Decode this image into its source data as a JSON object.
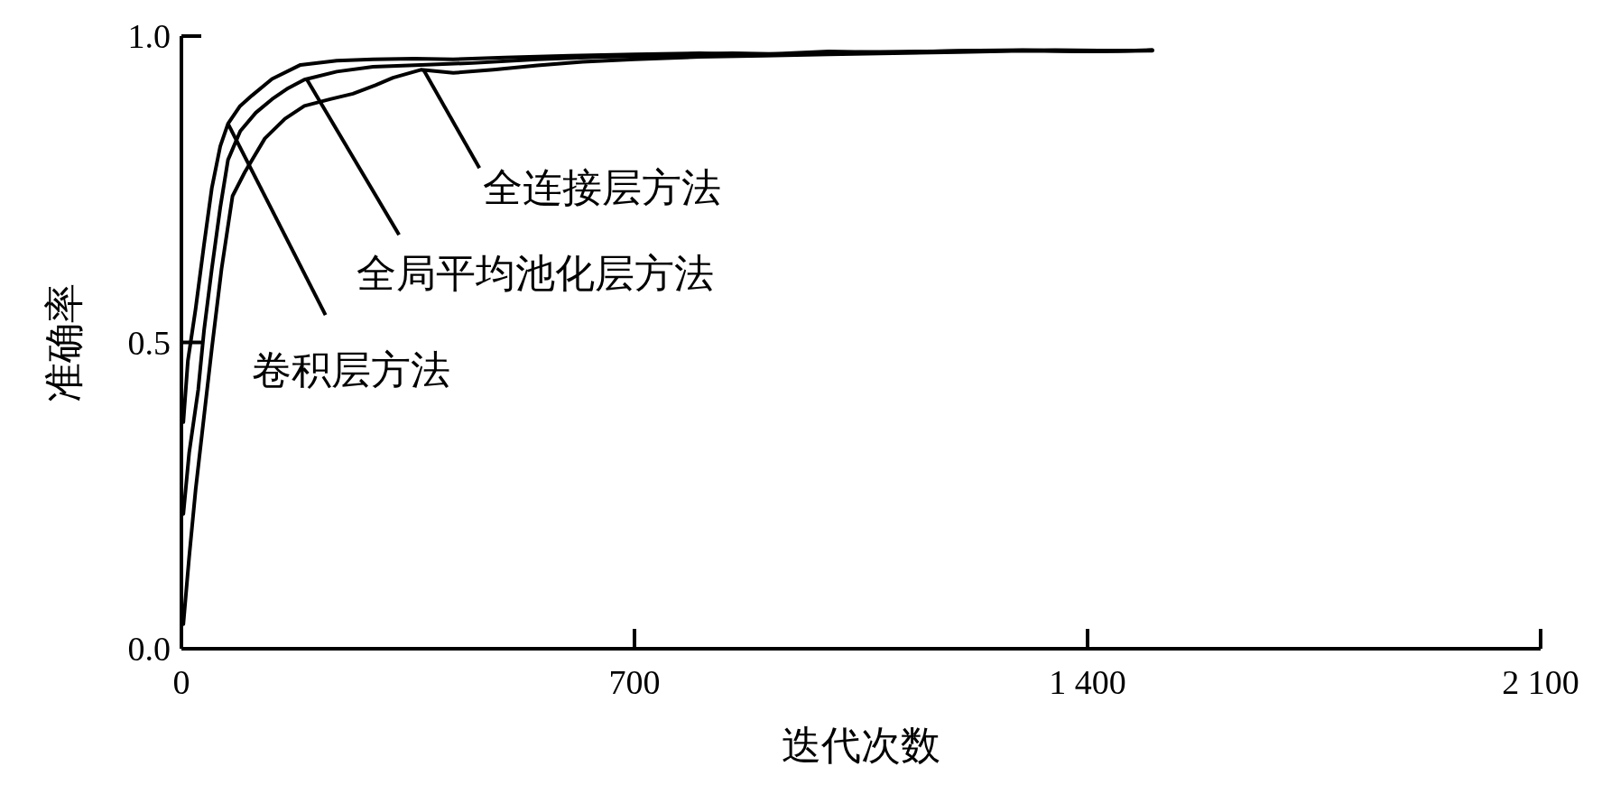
{
  "chart_data": {
    "type": "line",
    "xlabel": "迭代次数",
    "ylabel": "准确率",
    "xlim": [
      0,
      2100
    ],
    "ylim": [
      0,
      1
    ],
    "xticks": [
      0,
      700,
      {
        "value": 1400,
        "label": "1 400"
      },
      {
        "value": 2100,
        "label": "2 100"
      }
    ],
    "yticks": [
      {
        "value": 0,
        "label": "0.0"
      },
      0.5,
      {
        "value": 1,
        "label": "1.0"
      }
    ],
    "grid": false,
    "marker": "none",
    "line_style": "solid",
    "series": [
      {
        "color": "#000000",
        "x": [
          3,
          10,
          22,
          35,
          47,
          60,
          72,
          90,
          109,
          140,
          184,
          240,
          296,
          360,
          420,
          500,
          600,
          700,
          800,
          900,
          1000,
          1100,
          1200,
          1300,
          1400,
          1500
        ],
        "values": [
          0.37,
          0.47,
          0.555,
          0.66,
          0.752,
          0.82,
          0.857,
          0.885,
          0.903,
          0.93,
          0.953,
          0.96,
          0.962,
          0.963,
          0.962,
          0.965,
          0.968,
          0.97,
          0.972,
          0.97,
          0.975,
          0.973,
          0.976,
          0.977,
          0.975,
          0.976
        ]
      },
      {
        "color": "#000000",
        "x": [
          3,
          12,
          26,
          35,
          47,
          60,
          72,
          91,
          115,
          140,
          165,
          190,
          240,
          296,
          370,
          450,
          550,
          650,
          750,
          850,
          950,
          1050,
          1150,
          1250,
          1350,
          1450,
          1500
        ],
        "values": [
          0.22,
          0.32,
          0.423,
          0.52,
          0.62,
          0.72,
          0.798,
          0.845,
          0.875,
          0.897,
          0.915,
          0.929,
          0.942,
          0.95,
          0.953,
          0.956,
          0.962,
          0.966,
          0.968,
          0.972,
          0.97,
          0.974,
          0.975,
          0.976,
          0.977,
          0.976,
          0.977
        ]
      },
      {
        "color": "#000000",
        "x": [
          3,
          12,
          22,
          35,
          47,
          62,
          79,
          98,
          129,
          160,
          190,
          230,
          265,
          300,
          327,
          370,
          420,
          482,
          550,
          620,
          700,
          800,
          900,
          1000,
          1100,
          1200,
          1300,
          1400,
          1500
        ],
        "values": [
          0.04,
          0.15,
          0.26,
          0.38,
          0.49,
          0.62,
          0.739,
          0.778,
          0.833,
          0.865,
          0.886,
          0.897,
          0.906,
          0.92,
          0.932,
          0.945,
          0.94,
          0.945,
          0.952,
          0.958,
          0.962,
          0.966,
          0.968,
          0.97,
          0.972,
          0.974,
          0.976,
          0.975,
          0.977
        ]
      }
    ],
    "annotations": [
      {
        "text": "卷积层方法",
        "x": 72,
        "y": 0.857
      },
      {
        "text": "全局平均池化层方法",
        "x": 194,
        "y": 0.929
      },
      {
        "text": "全连接层方法",
        "x": 374,
        "y": 0.945
      }
    ]
  }
}
